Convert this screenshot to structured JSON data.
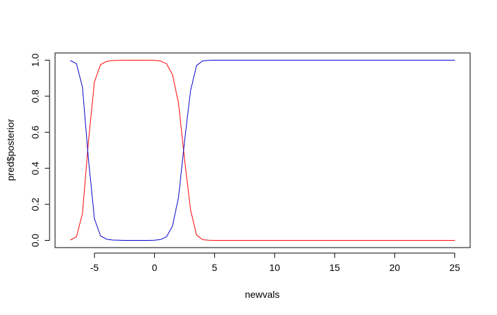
{
  "chart_data": {
    "type": "line",
    "title": "",
    "xlabel": "newvals",
    "ylabel": "pred$posterior",
    "xlim": [
      -8.28,
      26.28
    ],
    "ylim": [
      -0.04,
      1.04
    ],
    "xticks": [
      -5,
      0,
      5,
      10,
      15,
      20,
      25
    ],
    "yticks": [
      0.0,
      0.2,
      0.4,
      0.6,
      0.8,
      1.0
    ],
    "xtick_labels": [
      "-5",
      "0",
      "5",
      "10",
      "15",
      "20",
      "25"
    ],
    "ytick_labels": [
      "0.0",
      "0.2",
      "0.4",
      "0.6",
      "0.8",
      "1.0"
    ],
    "grid": false,
    "x": [
      -7,
      -6.5,
      -6,
      -5.5,
      -5,
      -4.5,
      -4,
      -3.5,
      -3,
      -2.5,
      -2,
      -1.5,
      -1,
      -0.5,
      0,
      0.5,
      1,
      1.5,
      2,
      2.5,
      3,
      3.5,
      4,
      4.5,
      5,
      6,
      8,
      10,
      15,
      20,
      25
    ],
    "series": [
      {
        "color": "#ff0000",
        "values": [
          0.002,
          0.02,
          0.15,
          0.55,
          0.88,
          0.975,
          0.993,
          0.998,
          0.999,
          1.0,
          1.0,
          1.0,
          1.0,
          1.0,
          0.999,
          0.995,
          0.98,
          0.92,
          0.76,
          0.45,
          0.17,
          0.03,
          0.004,
          0.001,
          0.0,
          0.0,
          0.0,
          0.0,
          0.0,
          0.0,
          0.0
        ]
      },
      {
        "color": "#0000cc",
        "values": [
          0.998,
          0.98,
          0.85,
          0.45,
          0.12,
          0.025,
          0.007,
          0.002,
          0.001,
          0.0,
          0.0,
          0.0,
          0.0,
          0.0,
          0.001,
          0.005,
          0.02,
          0.08,
          0.24,
          0.55,
          0.83,
          0.97,
          0.996,
          0.999,
          1.0,
          1.0,
          1.0,
          1.0,
          1.0,
          1.0,
          1.0
        ]
      }
    ]
  }
}
